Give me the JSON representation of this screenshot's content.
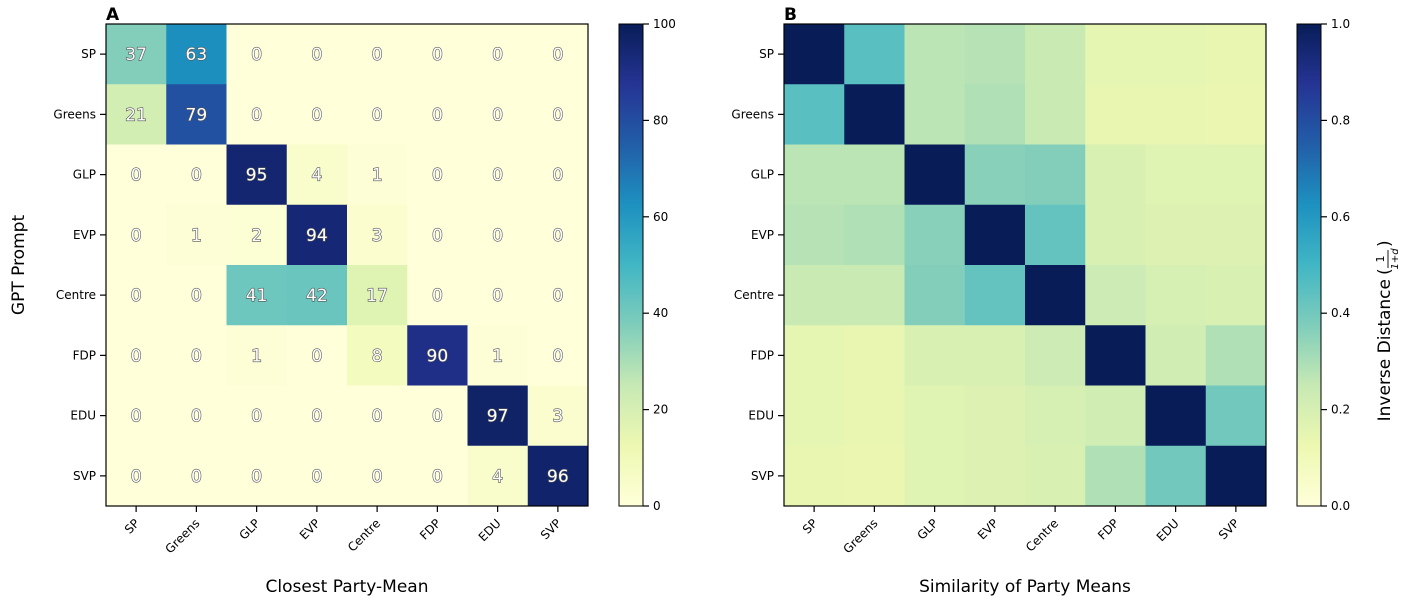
{
  "chart_data": [
    {
      "panel": "A",
      "type": "heatmap",
      "x_categories": [
        "SP",
        "Greens",
        "GLP",
        "EVP",
        "Centre",
        "FDP",
        "EDU",
        "SVP"
      ],
      "y_categories": [
        "SP",
        "Greens",
        "GLP",
        "EVP",
        "Centre",
        "FDP",
        "EDU",
        "SVP"
      ],
      "xlabel": "Closest Party-Mean",
      "ylabel": "GPT Prompt",
      "values": [
        [
          37,
          63,
          0,
          0,
          0,
          0,
          0,
          0
        ],
        [
          21,
          79,
          0,
          0,
          0,
          0,
          0,
          0
        ],
        [
          0,
          0,
          95,
          4,
          1,
          0,
          0,
          0
        ],
        [
          0,
          1,
          2,
          94,
          3,
          0,
          0,
          0
        ],
        [
          0,
          0,
          41,
          42,
          17,
          0,
          0,
          0
        ],
        [
          0,
          0,
          1,
          0,
          8,
          90,
          1,
          0
        ],
        [
          0,
          0,
          0,
          0,
          0,
          0,
          97,
          3
        ],
        [
          0,
          0,
          0,
          0,
          0,
          0,
          4,
          96
        ]
      ],
      "colorbar": {
        "range": [
          0,
          100
        ],
        "ticks": [
          "0",
          "20",
          "40",
          "60",
          "80",
          "100"
        ]
      },
      "colormap": "YlGnBu"
    },
    {
      "panel": "B",
      "type": "heatmap",
      "x_categories": [
        "SP",
        "Greens",
        "GLP",
        "EVP",
        "Centre",
        "FDP",
        "EDU",
        "SVP"
      ],
      "y_categories": [
        "SP",
        "Greens",
        "GLP",
        "EVP",
        "Centre",
        "FDP",
        "EDU",
        "SVP"
      ],
      "xlabel": "Similarity of Party Means",
      "ylabel": "",
      "values": [
        [
          1.0,
          0.45,
          0.27,
          0.28,
          0.24,
          0.15,
          0.15,
          0.14
        ],
        [
          0.45,
          1.0,
          0.27,
          0.29,
          0.24,
          0.14,
          0.14,
          0.13
        ],
        [
          0.27,
          0.27,
          1.0,
          0.36,
          0.37,
          0.19,
          0.17,
          0.17
        ],
        [
          0.28,
          0.29,
          0.36,
          1.0,
          0.43,
          0.19,
          0.18,
          0.18
        ],
        [
          0.24,
          0.24,
          0.37,
          0.43,
          1.0,
          0.23,
          0.2,
          0.19
        ],
        [
          0.15,
          0.14,
          0.19,
          0.19,
          0.23,
          1.0,
          0.22,
          0.29
        ],
        [
          0.15,
          0.14,
          0.17,
          0.18,
          0.2,
          0.22,
          1.0,
          0.4
        ],
        [
          0.14,
          0.13,
          0.17,
          0.18,
          0.19,
          0.29,
          0.4,
          1.0
        ]
      ],
      "colorbar": {
        "label": "Inverse Distance",
        "label_formula": {
          "num": "1",
          "den": "1+d"
        },
        "range": [
          0,
          1
        ],
        "ticks": [
          "0.0",
          "0.2",
          "0.4",
          "0.6",
          "0.8",
          "1.0"
        ]
      },
      "colormap": "YlGnBu"
    }
  ]
}
